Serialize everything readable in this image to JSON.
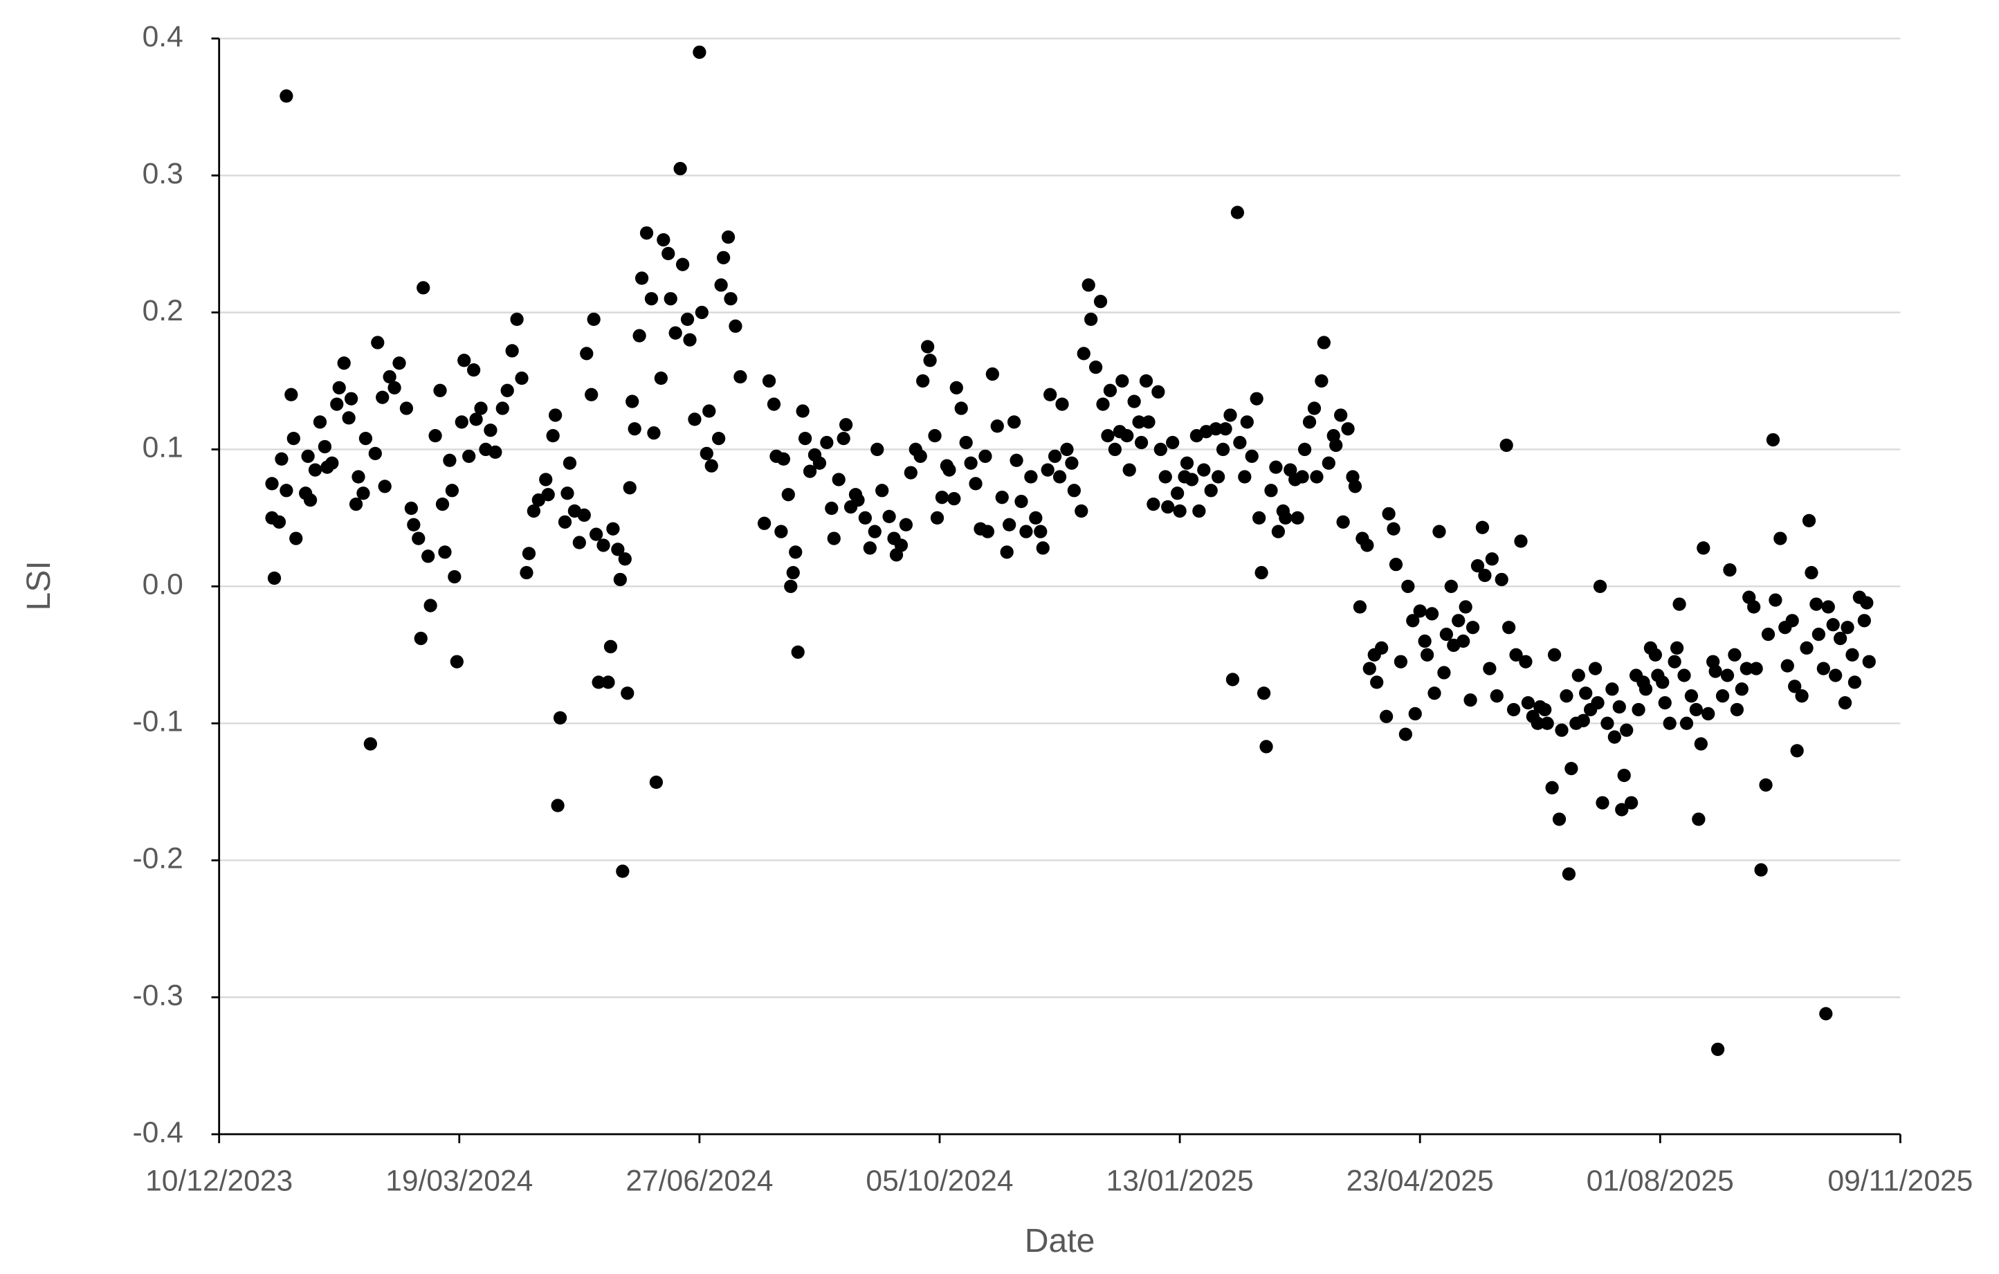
{
  "chart_data": {
    "type": "scatter",
    "x_label": "Date",
    "y_label": "LSI",
    "color": "#000000",
    "grid": true,
    "xlim": [
      "2023-12-10",
      "2025-11-09"
    ],
    "xticks": [
      {
        "value": "2023-12-10",
        "label": "10/12/2023"
      },
      {
        "value": "2024-03-19",
        "label": "19/03/2024"
      },
      {
        "value": "2024-06-27",
        "label": "27/06/2024"
      },
      {
        "value": "2024-10-05",
        "label": "05/10/2024"
      },
      {
        "value": "2025-01-13",
        "label": "13/01/2025"
      },
      {
        "value": "2025-04-23",
        "label": "23/04/2025"
      },
      {
        "value": "2025-08-01",
        "label": "01/08/2025"
      },
      {
        "value": "2025-11-09",
        "label": "09/11/2025"
      }
    ],
    "ylim": [
      -0.4,
      0.4
    ],
    "yticks": [
      -0.4,
      -0.3,
      -0.2,
      -0.1,
      {
        "value": 0,
        "label": "0.0"
      },
      0.1,
      0.2,
      0.3,
      0.4
    ],
    "x": [
      "2024-01-01",
      "2024-01-01",
      "2024-01-02",
      "2024-01-04",
      "2024-01-05",
      "2024-01-07",
      "2024-01-07",
      "2024-01-09",
      "2024-01-10",
      "2024-01-11",
      "2024-01-15",
      "2024-01-16",
      "2024-01-17",
      "2024-01-19",
      "2024-01-21",
      "2024-01-23",
      "2024-01-24",
      "2024-01-26",
      "2024-01-28",
      "2024-01-29",
      "2024-01-31",
      "2024-02-02",
      "2024-02-03",
      "2024-02-05",
      "2024-02-06",
      "2024-02-08",
      "2024-02-09",
      "2024-02-11",
      "2024-02-13",
      "2024-02-14",
      "2024-02-16",
      "2024-02-17",
      "2024-02-19",
      "2024-02-21",
      "2024-02-23",
      "2024-02-26",
      "2024-02-28",
      "2024-02-29",
      "2024-03-02",
      "2024-03-03",
      "2024-03-04",
      "2024-03-06",
      "2024-03-07",
      "2024-03-09",
      "2024-03-11",
      "2024-03-12",
      "2024-03-13",
      "2024-03-15",
      "2024-03-16",
      "2024-03-17",
      "2024-03-18",
      "2024-03-20",
      "2024-03-21",
      "2024-03-23",
      "2024-03-25",
      "2024-03-26",
      "2024-03-28",
      "2024-03-30",
      "2024-04-01",
      "2024-04-03",
      "2024-04-06",
      "2024-04-08",
      "2024-04-10",
      "2024-04-12",
      "2024-04-14",
      "2024-04-16",
      "2024-04-17",
      "2024-04-19",
      "2024-04-21",
      "2024-04-24",
      "2024-04-25",
      "2024-04-27",
      "2024-04-28",
      "2024-04-29",
      "2024-04-30",
      "2024-05-02",
      "2024-05-03",
      "2024-05-04",
      "2024-05-06",
      "2024-05-08",
      "2024-05-10",
      "2024-05-11",
      "2024-05-13",
      "2024-05-14",
      "2024-05-15",
      "2024-05-16",
      "2024-05-18",
      "2024-05-20",
      "2024-05-21",
      "2024-05-22",
      "2024-05-24",
      "2024-05-25",
      "2024-05-26",
      "2024-05-27",
      "2024-05-28",
      "2024-05-29",
      "2024-05-30",
      "2024-05-31",
      "2024-06-02",
      "2024-06-03",
      "2024-06-05",
      "2024-06-07",
      "2024-06-08",
      "2024-06-09",
      "2024-06-11",
      "2024-06-12",
      "2024-06-14",
      "2024-06-15",
      "2024-06-17",
      "2024-06-19",
      "2024-06-20",
      "2024-06-22",
      "2024-06-23",
      "2024-06-25",
      "2024-06-27",
      "2024-06-28",
      "2024-06-30",
      "2024-07-01",
      "2024-07-02",
      "2024-07-05",
      "2024-07-06",
      "2024-07-07",
      "2024-07-09",
      "2024-07-10",
      "2024-07-12",
      "2024-07-14",
      "2024-07-24",
      "2024-07-26",
      "2024-07-28",
      "2024-07-29",
      "2024-07-31",
      "2024-08-01",
      "2024-08-03",
      "2024-08-04",
      "2024-08-05",
      "2024-08-06",
      "2024-08-07",
      "2024-08-09",
      "2024-08-10",
      "2024-08-12",
      "2024-08-14",
      "2024-08-16",
      "2024-08-19",
      "2024-08-21",
      "2024-08-22",
      "2024-08-24",
      "2024-08-26",
      "2024-08-27",
      "2024-08-29",
      "2024-08-31",
      "2024-09-01",
      "2024-09-04",
      "2024-09-06",
      "2024-09-08",
      "2024-09-09",
      "2024-09-11",
      "2024-09-14",
      "2024-09-16",
      "2024-09-17",
      "2024-09-19",
      "2024-09-21",
      "2024-09-23",
      "2024-09-25",
      "2024-09-27",
      "2024-09-28",
      "2024-09-30",
      "2024-10-01",
      "2024-10-03",
      "2024-10-04",
      "2024-10-06",
      "2024-10-08",
      "2024-10-09",
      "2024-10-11",
      "2024-10-12",
      "2024-10-14",
      "2024-10-16",
      "2024-10-18",
      "2024-10-20",
      "2024-10-22",
      "2024-10-24",
      "2024-10-25",
      "2024-10-27",
      "2024-10-29",
      "2024-10-31",
      "2024-11-02",
      "2024-11-03",
      "2024-11-05",
      "2024-11-06",
      "2024-11-08",
      "2024-11-10",
      "2024-11-12",
      "2024-11-14",
      "2024-11-16",
      "2024-11-17",
      "2024-11-19",
      "2024-11-20",
      "2024-11-22",
      "2024-11-24",
      "2024-11-25",
      "2024-11-27",
      "2024-11-29",
      "2024-11-30",
      "2024-12-03",
      "2024-12-04",
      "2024-12-06",
      "2024-12-07",
      "2024-12-09",
      "2024-12-11",
      "2024-12-12",
      "2024-12-14",
      "2024-12-15",
      "2024-12-17",
      "2024-12-19",
      "2024-12-20",
      "2024-12-22",
      "2024-12-23",
      "2024-12-25",
      "2024-12-27",
      "2024-12-28",
      "2024-12-30",
      "2024-12-31",
      "2025-01-02",
      "2025-01-04",
      "2025-01-05",
      "2025-01-07",
      "2025-01-08",
      "2025-01-10",
      "2025-01-12",
      "2025-01-13",
      "2025-01-15",
      "2025-01-16",
      "2025-01-18",
      "2025-01-20",
      "2025-01-21",
      "2025-01-23",
      "2025-01-24",
      "2025-01-26",
      "2025-01-28",
      "2025-01-29",
      "2025-01-31",
      "2025-02-01",
      "2025-02-03",
      "2025-02-04",
      "2025-02-06",
      "2025-02-07",
      "2025-02-09",
      "2025-02-10",
      "2025-02-12",
      "2025-02-14",
      "2025-02-15",
      "2025-02-16",
      "2025-02-17",
      "2025-02-18",
      "2025-02-20",
      "2025-02-22",
      "2025-02-23",
      "2025-02-25",
      "2025-02-26",
      "2025-02-28",
      "2025-03-02",
      "2025-03-03",
      "2025-03-05",
      "2025-03-06",
      "2025-03-08",
      "2025-03-10",
      "2025-03-11",
      "2025-03-13",
      "2025-03-14",
      "2025-03-16",
      "2025-03-18",
      "2025-03-19",
      "2025-03-21",
      "2025-03-22",
      "2025-03-24",
      "2025-03-26",
      "2025-03-27",
      "2025-03-29",
      "2025-03-30",
      "2025-04-01",
      "2025-04-02",
      "2025-04-04",
      "2025-04-05",
      "2025-04-07",
      "2025-04-09",
      "2025-04-10",
      "2025-04-12",
      "2025-04-13",
      "2025-04-15",
      "2025-04-17",
      "2025-04-18",
      "2025-04-20",
      "2025-04-21",
      "2025-04-23",
      "2025-04-25",
      "2025-04-26",
      "2025-04-28",
      "2025-04-29",
      "2025-05-01",
      "2025-05-03",
      "2025-05-04",
      "2025-05-06",
      "2025-05-07",
      "2025-05-09",
      "2025-05-11",
      "2025-05-12",
      "2025-05-14",
      "2025-05-15",
      "2025-05-17",
      "2025-05-19",
      "2025-05-20",
      "2025-05-22",
      "2025-05-23",
      "2025-05-25",
      "2025-05-27",
      "2025-05-29",
      "2025-05-30",
      "2025-06-01",
      "2025-06-02",
      "2025-06-04",
      "2025-06-06",
      "2025-06-07",
      "2025-06-09",
      "2025-06-11",
      "2025-06-12",
      "2025-06-14",
      "2025-06-15",
      "2025-06-17",
      "2025-06-18",
      "2025-06-20",
      "2025-06-21",
      "2025-06-23",
      "2025-06-24",
      "2025-06-25",
      "2025-06-27",
      "2025-06-28",
      "2025-06-30",
      "2025-07-01",
      "2025-07-03",
      "2025-07-05",
      "2025-07-06",
      "2025-07-07",
      "2025-07-08",
      "2025-07-10",
      "2025-07-12",
      "2025-07-13",
      "2025-07-15",
      "2025-07-16",
      "2025-07-17",
      "2025-07-18",
      "2025-07-20",
      "2025-07-22",
      "2025-07-23",
      "2025-07-25",
      "2025-07-26",
      "2025-07-28",
      "2025-07-30",
      "2025-07-31",
      "2025-08-02",
      "2025-08-03",
      "2025-08-05",
      "2025-08-07",
      "2025-08-08",
      "2025-08-09",
      "2025-08-11",
      "2025-08-12",
      "2025-08-14",
      "2025-08-16",
      "2025-08-17",
      "2025-08-18",
      "2025-08-19",
      "2025-08-21",
      "2025-08-23",
      "2025-08-24",
      "2025-08-25",
      "2025-08-27",
      "2025-08-29",
      "2025-08-30",
      "2025-09-01",
      "2025-09-02",
      "2025-09-04",
      "2025-09-06",
      "2025-09-07",
      "2025-09-09",
      "2025-09-10",
      "2025-09-12",
      "2025-09-14",
      "2025-09-15",
      "2025-09-17",
      "2025-09-18",
      "2025-09-20",
      "2025-09-22",
      "2025-09-23",
      "2025-09-25",
      "2025-09-26",
      "2025-09-27",
      "2025-09-29",
      "2025-10-01",
      "2025-10-02",
      "2025-10-03",
      "2025-10-05",
      "2025-10-06",
      "2025-10-08",
      "2025-10-09",
      "2025-10-10",
      "2025-10-12",
      "2025-10-13",
      "2025-10-15",
      "2025-10-17",
      "2025-10-18",
      "2025-10-20",
      "2025-10-21",
      "2025-10-23",
      "2025-10-25",
      "2025-10-26",
      "2025-10-27"
    ],
    "values": [
      0.05,
      0.075,
      0.006,
      0.047,
      0.093,
      0.358,
      0.07,
      0.14,
      0.108,
      0.035,
      0.068,
      0.095,
      0.063,
      0.085,
      0.12,
      0.102,
      0.087,
      0.09,
      0.133,
      0.145,
      0.163,
      0.123,
      0.137,
      0.06,
      0.08,
      0.068,
      0.108,
      -0.115,
      0.097,
      0.178,
      0.138,
      0.073,
      0.153,
      0.145,
      0.163,
      0.13,
      0.057,
      0.045,
      0.035,
      -0.038,
      0.218,
      0.022,
      -0.014,
      0.11,
      0.143,
      0.06,
      0.025,
      0.092,
      0.07,
      0.007,
      -0.055,
      0.12,
      0.165,
      0.095,
      0.158,
      0.122,
      0.13,
      0.1,
      0.114,
      0.098,
      0.13,
      0.143,
      0.172,
      0.195,
      0.152,
      0.01,
      0.024,
      0.055,
      0.063,
      0.078,
      0.067,
      0.11,
      0.125,
      -0.16,
      -0.096,
      0.047,
      0.068,
      0.09,
      0.055,
      0.032,
      0.052,
      0.17,
      0.14,
      0.195,
      0.038,
      -0.07,
      0.03,
      -0.07,
      -0.044,
      0.042,
      0.027,
      0.005,
      -0.208,
      0.02,
      -0.078,
      0.072,
      0.135,
      0.115,
      0.183,
      0.225,
      0.258,
      0.21,
      0.112,
      -0.143,
      0.152,
      0.253,
      0.243,
      0.21,
      0.185,
      0.305,
      0.235,
      0.195,
      0.18,
      0.122,
      0.39,
      0.2,
      0.097,
      0.128,
      0.088,
      0.108,
      0.22,
      0.24,
      0.255,
      0.21,
      0.19,
      0.153,
      0.046,
      0.15,
      0.133,
      0.095,
      0.04,
      0.093,
      0.067,
      0.0,
      0.01,
      0.025,
      -0.048,
      0.128,
      0.108,
      0.084,
      0.096,
      0.09,
      0.105,
      0.057,
      0.035,
      0.078,
      0.108,
      0.118,
      0.058,
      0.067,
      0.063,
      0.05,
      0.028,
      0.04,
      0.1,
      0.07,
      0.051,
      0.035,
      0.023,
      0.03,
      0.045,
      0.083,
      0.1,
      0.095,
      0.15,
      0.175,
      0.165,
      0.11,
      0.05,
      0.065,
      0.088,
      0.085,
      0.064,
      0.145,
      0.13,
      0.105,
      0.09,
      0.075,
      0.042,
      0.095,
      0.04,
      0.155,
      0.117,
      0.065,
      0.025,
      0.045,
      0.12,
      0.092,
      0.062,
      0.04,
      0.08,
      0.05,
      0.04,
      0.028,
      0.085,
      0.14,
      0.095,
      0.08,
      0.133,
      0.1,
      0.09,
      0.07,
      0.055,
      0.17,
      0.22,
      0.195,
      0.16,
      0.208,
      0.133,
      0.11,
      0.143,
      0.1,
      0.113,
      0.15,
      0.11,
      0.085,
      0.135,
      0.12,
      0.105,
      0.15,
      0.12,
      0.06,
      0.142,
      0.1,
      0.08,
      0.058,
      0.105,
      0.068,
      0.055,
      0.08,
      0.09,
      0.078,
      0.11,
      0.055,
      0.085,
      0.113,
      0.07,
      0.115,
      0.08,
      0.1,
      0.115,
      0.125,
      -0.068,
      0.273,
      0.105,
      0.08,
      0.12,
      0.095,
      0.137,
      0.05,
      0.01,
      -0.078,
      -0.117,
      0.07,
      0.087,
      0.04,
      0.055,
      0.05,
      0.085,
      0.078,
      0.05,
      0.08,
      0.1,
      0.12,
      0.13,
      0.08,
      0.15,
      0.178,
      0.09,
      0.11,
      0.103,
      0.125,
      0.047,
      0.115,
      0.08,
      0.073,
      -0.015,
      0.035,
      0.03,
      -0.06,
      -0.05,
      -0.07,
      -0.045,
      -0.095,
      0.053,
      0.042,
      0.016,
      -0.055,
      -0.108,
      0.0,
      -0.025,
      -0.093,
      -0.018,
      -0.04,
      -0.05,
      -0.02,
      -0.078,
      0.04,
      -0.063,
      -0.035,
      0.0,
      -0.043,
      -0.025,
      -0.04,
      -0.015,
      -0.083,
      -0.03,
      0.015,
      0.043,
      0.008,
      -0.06,
      0.02,
      -0.08,
      0.005,
      0.103,
      -0.03,
      -0.09,
      -0.05,
      0.033,
      -0.055,
      -0.085,
      -0.095,
      -0.1,
      -0.088,
      -0.09,
      -0.1,
      -0.147,
      -0.05,
      -0.17,
      -0.105,
      -0.08,
      -0.21,
      -0.133,
      -0.1,
      -0.065,
      -0.098,
      -0.078,
      -0.09,
      -0.06,
      -0.085,
      0.0,
      -0.158,
      -0.1,
      -0.075,
      -0.11,
      -0.088,
      -0.163,
      -0.138,
      -0.105,
      -0.158,
      -0.065,
      -0.09,
      -0.07,
      -0.075,
      -0.045,
      -0.05,
      -0.065,
      -0.07,
      -0.085,
      -0.1,
      -0.055,
      -0.045,
      -0.013,
      -0.065,
      -0.1,
      -0.08,
      -0.09,
      -0.17,
      -0.115,
      0.028,
      -0.093,
      -0.055,
      -0.062,
      -0.338,
      -0.08,
      -0.065,
      0.012,
      -0.05,
      -0.09,
      -0.075,
      -0.06,
      -0.008,
      -0.015,
      -0.06,
      -0.207,
      -0.145,
      -0.035,
      0.107,
      -0.01,
      0.035,
      -0.03,
      -0.058,
      -0.025,
      -0.073,
      -0.12,
      -0.08,
      -0.045,
      0.048,
      0.01,
      -0.013,
      -0.035,
      -0.06,
      -0.312,
      -0.015,
      -0.028,
      -0.065,
      -0.038,
      -0.085,
      -0.03,
      -0.05,
      -0.07,
      -0.008,
      -0.025,
      -0.012,
      -0.055
    ]
  }
}
